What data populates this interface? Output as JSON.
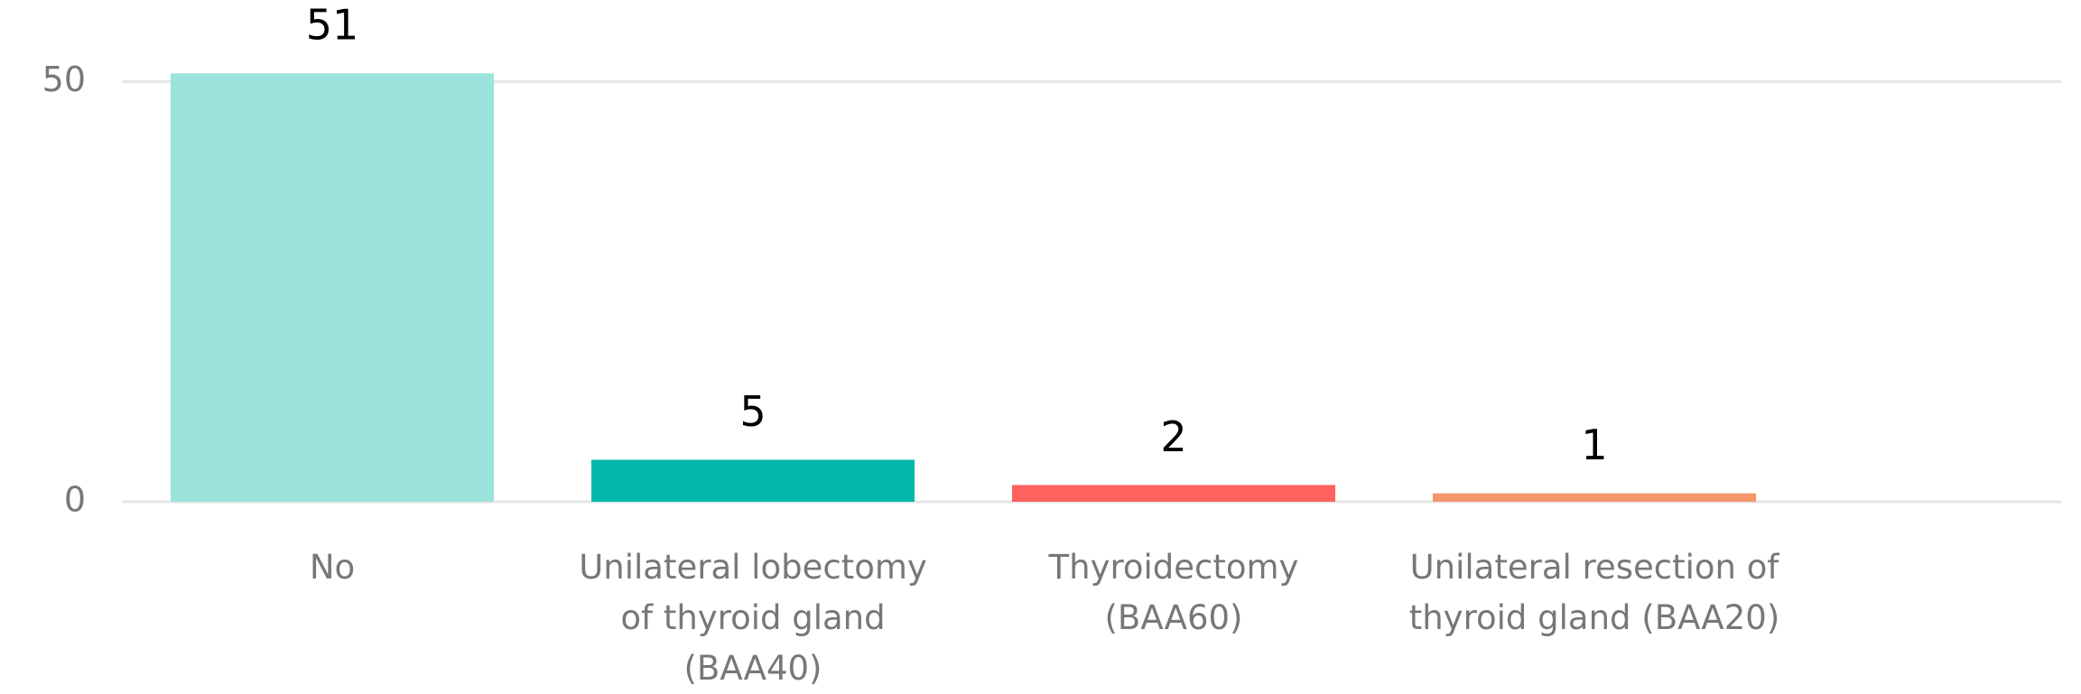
{
  "chart_data": {
    "type": "bar",
    "categories": [
      "No",
      "Unilateral lobectomy of thyroid gland (BAA40)",
      "Thyroidectomy (BAA60)",
      "Unilateral resection of thyroid gland (BAA20)"
    ],
    "values": [
      51,
      5,
      2,
      1
    ],
    "colors": [
      "#9be3dc",
      "#01b8aa",
      "#fd625e",
      "#f5956a"
    ],
    "ylim": [
      0,
      55
    ],
    "yticks": [
      0,
      50
    ],
    "grid": true
  }
}
